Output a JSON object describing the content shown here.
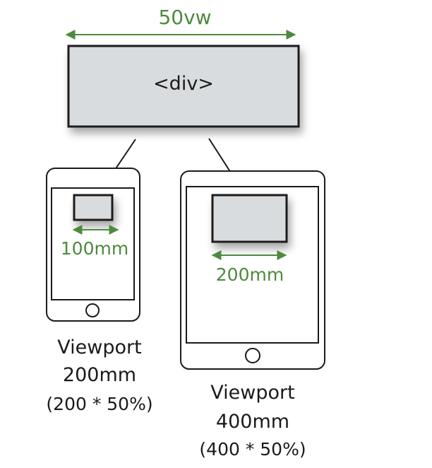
{
  "element_label": "<div>",
  "width_label": "50vw",
  "small_device": {
    "measurement": "100mm",
    "caption_line1": "Viewport",
    "caption_line2": "200mm",
    "caption_line3": "(200 * 50%)"
  },
  "large_device": {
    "measurement": "200mm",
    "caption_line1": "Viewport",
    "caption_line2": "400mm",
    "caption_line3": "(400 * 50%)"
  },
  "colors": {
    "accent_green": "#4e8a3e",
    "box_fill": "#d9dcdf",
    "stroke": "#1a1a1a"
  }
}
